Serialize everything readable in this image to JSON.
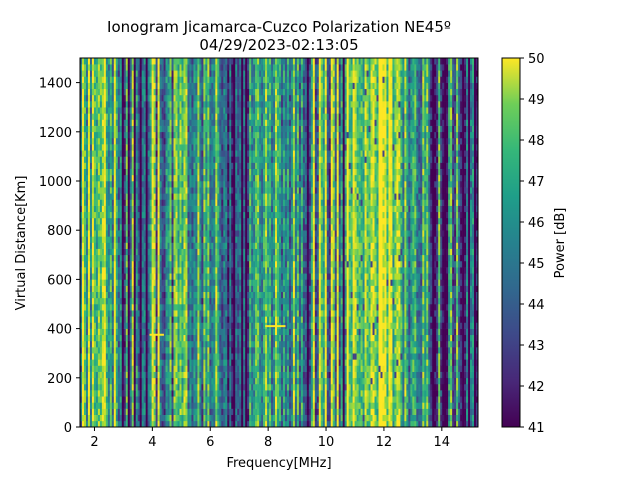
{
  "chart_data": {
    "type": "heatmap",
    "title": "Ionogram Jicamarca-Cuzco Polarization NE45º",
    "subtitle": "04/29/2023-02:13:05",
    "xlabel": "Frequency[MHz]",
    "ylabel": "Virtual Distance[Km]",
    "xlim": [
      1.5,
      15.25
    ],
    "ylim": [
      0,
      1500
    ],
    "x_ticks": [
      2,
      4,
      6,
      8,
      10,
      12,
      14
    ],
    "y_ticks": [
      0,
      200,
      400,
      600,
      800,
      1000,
      1200,
      1400
    ],
    "colorbar": {
      "label": "Power [dB]",
      "range": [
        41,
        50
      ],
      "ticks": [
        41,
        42,
        43,
        44,
        45,
        46,
        47,
        48,
        49,
        50
      ],
      "colormap": "viridis"
    },
    "frequency_bands": [
      {
        "from": 1.5,
        "to": 2.8,
        "level": "high-mixed"
      },
      {
        "from": 2.8,
        "to": 4.3,
        "level": "mixed-striped"
      },
      {
        "from": 4.3,
        "to": 6.3,
        "level": "mixed"
      },
      {
        "from": 6.3,
        "to": 7.3,
        "level": "low"
      },
      {
        "from": 7.3,
        "to": 9.2,
        "level": "mixed"
      },
      {
        "from": 9.2,
        "to": 10.6,
        "level": "mixed-striped"
      },
      {
        "from": 10.6,
        "to": 12.6,
        "level": "high"
      },
      {
        "from": 12.6,
        "to": 13.6,
        "level": "mixed"
      },
      {
        "from": 13.6,
        "to": 15.25,
        "level": "low-striped"
      }
    ],
    "traces": [
      {
        "x_from": 3.9,
        "x_to": 4.4,
        "y": 375
      },
      {
        "x_from": 7.9,
        "x_to": 8.6,
        "y": 410
      }
    ],
    "grid": false
  }
}
